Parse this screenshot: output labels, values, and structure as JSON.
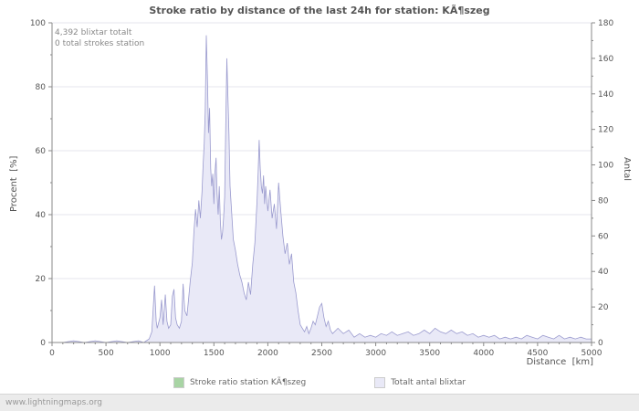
{
  "title": "Stroke ratio by distance of the last 24h for station: KÃ¶szeg",
  "annotations": {
    "line1": "4,392 blixtar totalt",
    "line2": "0 total strokes station"
  },
  "axes": {
    "left": {
      "label": "Procent  [%]",
      "ticks": [
        0,
        20,
        40,
        60,
        80,
        100
      ],
      "range": [
        0,
        100
      ]
    },
    "right": {
      "label": "Antal",
      "ticks": [
        0,
        20,
        40,
        60,
        80,
        100,
        120,
        140,
        160,
        180
      ],
      "range": [
        0,
        180
      ]
    },
    "x": {
      "label": "Distance  [km]",
      "ticks": [
        0,
        500,
        1000,
        1500,
        2000,
        2500,
        3000,
        3500,
        4000,
        4500,
        5000
      ],
      "range": [
        0,
        5000
      ]
    }
  },
  "legend": [
    {
      "label": "Stroke ratio station KÃ¶szeg",
      "color": "#a8d4a4"
    },
    {
      "label": "Totalt antal blixtar",
      "color": "#e9e9f7"
    }
  ],
  "footer": {
    "text": "www.lightningmaps.org"
  },
  "chart_data": {
    "type": "area",
    "title": "Stroke ratio by distance of the last 24h for station: KÃ¶szeg",
    "xlabel": "Distance [km]",
    "ylabel_left": "Procent [%]",
    "ylabel_right": "Antal",
    "xlim": [
      0,
      5000
    ],
    "ylim_left": [
      0,
      100
    ],
    "ylim_right": [
      0,
      180
    ],
    "grid": "horizontal",
    "legend_position": "bottom",
    "total_strokes": 4392,
    "station_strokes": 0,
    "colors": {
      "area_fill": "#e9e9f7",
      "area_line": "#9a9ace",
      "ratio_line": "#a8d4a4"
    },
    "series": [
      {
        "name": "Totalt antal blixtar",
        "axis": "right",
        "type": "area",
        "points": [
          [
            0,
            0
          ],
          [
            100,
            0
          ],
          [
            200,
            1
          ],
          [
            300,
            0
          ],
          [
            400,
            1
          ],
          [
            500,
            0
          ],
          [
            600,
            1
          ],
          [
            700,
            0
          ],
          [
            800,
            1
          ],
          [
            850,
            0
          ],
          [
            900,
            2
          ],
          [
            925,
            6
          ],
          [
            950,
            32
          ],
          [
            965,
            12
          ],
          [
            975,
            8
          ],
          [
            1000,
            14
          ],
          [
            1015,
            24
          ],
          [
            1030,
            10
          ],
          [
            1050,
            27
          ],
          [
            1065,
            12
          ],
          [
            1080,
            8
          ],
          [
            1100,
            10
          ],
          [
            1115,
            26
          ],
          [
            1130,
            30
          ],
          [
            1145,
            14
          ],
          [
            1160,
            10
          ],
          [
            1180,
            8
          ],
          [
            1200,
            12
          ],
          [
            1215,
            33
          ],
          [
            1230,
            18
          ],
          [
            1250,
            15
          ],
          [
            1265,
            24
          ],
          [
            1280,
            34
          ],
          [
            1300,
            45
          ],
          [
            1315,
            62
          ],
          [
            1330,
            75
          ],
          [
            1345,
            65
          ],
          [
            1360,
            80
          ],
          [
            1375,
            70
          ],
          [
            1390,
            85
          ],
          [
            1400,
            100
          ],
          [
            1410,
            112
          ],
          [
            1420,
            130
          ],
          [
            1430,
            173
          ],
          [
            1440,
            150
          ],
          [
            1450,
            118
          ],
          [
            1460,
            132
          ],
          [
            1470,
            98
          ],
          [
            1480,
            88
          ],
          [
            1490,
            95
          ],
          [
            1500,
            78
          ],
          [
            1510,
            96
          ],
          [
            1520,
            104
          ],
          [
            1530,
            84
          ],
          [
            1540,
            72
          ],
          [
            1550,
            88
          ],
          [
            1560,
            68
          ],
          [
            1570,
            58
          ],
          [
            1580,
            62
          ],
          [
            1590,
            70
          ],
          [
            1600,
            82
          ],
          [
            1610,
            122
          ],
          [
            1620,
            160
          ],
          [
            1630,
            138
          ],
          [
            1640,
            118
          ],
          [
            1650,
            88
          ],
          [
            1660,
            78
          ],
          [
            1670,
            68
          ],
          [
            1680,
            58
          ],
          [
            1700,
            52
          ],
          [
            1720,
            44
          ],
          [
            1740,
            38
          ],
          [
            1760,
            34
          ],
          [
            1780,
            28
          ],
          [
            1800,
            24
          ],
          [
            1820,
            34
          ],
          [
            1840,
            27
          ],
          [
            1860,
            44
          ],
          [
            1880,
            56
          ],
          [
            1900,
            80
          ],
          [
            1910,
            96
          ],
          [
            1920,
            114
          ],
          [
            1930,
            98
          ],
          [
            1940,
            88
          ],
          [
            1950,
            84
          ],
          [
            1960,
            94
          ],
          [
            1970,
            78
          ],
          [
            1980,
            88
          ],
          [
            2000,
            74
          ],
          [
            2020,
            86
          ],
          [
            2040,
            70
          ],
          [
            2060,
            78
          ],
          [
            2080,
            64
          ],
          [
            2100,
            90
          ],
          [
            2120,
            74
          ],
          [
            2140,
            60
          ],
          [
            2160,
            50
          ],
          [
            2180,
            56
          ],
          [
            2200,
            44
          ],
          [
            2220,
            50
          ],
          [
            2240,
            34
          ],
          [
            2260,
            28
          ],
          [
            2280,
            18
          ],
          [
            2300,
            10
          ],
          [
            2320,
            8
          ],
          [
            2340,
            6
          ],
          [
            2360,
            9
          ],
          [
            2380,
            5
          ],
          [
            2400,
            8
          ],
          [
            2420,
            12
          ],
          [
            2440,
            10
          ],
          [
            2460,
            15
          ],
          [
            2480,
            20
          ],
          [
            2500,
            22
          ],
          [
            2520,
            14
          ],
          [
            2540,
            9
          ],
          [
            2560,
            12
          ],
          [
            2580,
            7
          ],
          [
            2600,
            5
          ],
          [
            2650,
            8
          ],
          [
            2700,
            5
          ],
          [
            2750,
            7
          ],
          [
            2800,
            3
          ],
          [
            2850,
            5
          ],
          [
            2900,
            3
          ],
          [
            2950,
            4
          ],
          [
            3000,
            3
          ],
          [
            3050,
            5
          ],
          [
            3100,
            4
          ],
          [
            3150,
            6
          ],
          [
            3200,
            4
          ],
          [
            3250,
            5
          ],
          [
            3300,
            6
          ],
          [
            3350,
            4
          ],
          [
            3400,
            5
          ],
          [
            3450,
            7
          ],
          [
            3500,
            5
          ],
          [
            3550,
            8
          ],
          [
            3600,
            6
          ],
          [
            3650,
            5
          ],
          [
            3700,
            7
          ],
          [
            3750,
            5
          ],
          [
            3800,
            6
          ],
          [
            3850,
            4
          ],
          [
            3900,
            5
          ],
          [
            3950,
            3
          ],
          [
            4000,
            4
          ],
          [
            4050,
            3
          ],
          [
            4100,
            4
          ],
          [
            4150,
            2
          ],
          [
            4200,
            3
          ],
          [
            4250,
            2
          ],
          [
            4300,
            3
          ],
          [
            4350,
            2
          ],
          [
            4400,
            4
          ],
          [
            4450,
            3
          ],
          [
            4500,
            2
          ],
          [
            4550,
            4
          ],
          [
            4600,
            3
          ],
          [
            4650,
            2
          ],
          [
            4700,
            4
          ],
          [
            4750,
            2
          ],
          [
            4800,
            3
          ],
          [
            4850,
            2
          ],
          [
            4900,
            3
          ],
          [
            4950,
            2
          ],
          [
            5000,
            2
          ]
        ]
      },
      {
        "name": "Stroke ratio station KÃ¶szeg",
        "axis": "left",
        "type": "line",
        "constant_value": 0
      }
    ]
  }
}
